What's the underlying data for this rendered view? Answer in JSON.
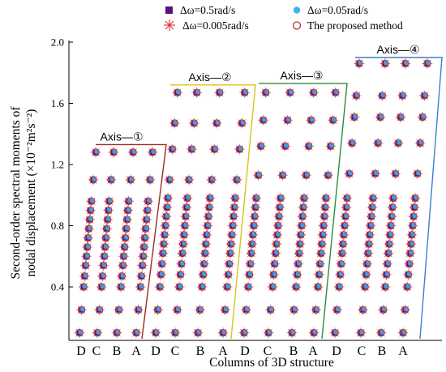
{
  "chart_data": {
    "type": "scatter",
    "ylabel_line1": "Second-order spectral moments of",
    "ylabel_line2": "nodal displacement (×10⁻²m²s⁻²)",
    "xlabel": "Columns of  3D structure",
    "ylim": [
      0.0,
      2.0
    ],
    "yticks": [
      "0.4",
      "0.8",
      "1.2",
      "1.6",
      "2.0"
    ],
    "ytick_values": [
      0.4,
      0.8,
      1.2,
      1.6,
      2.0
    ],
    "x_tick_labels": [
      "D",
      "C",
      "B",
      "A",
      "D",
      "C",
      "B",
      "A",
      "D",
      "C",
      "B",
      "A",
      "D",
      "C",
      "B",
      "A"
    ],
    "grid": false,
    "legend_position": "top",
    "legend": [
      {
        "name": "Δω=0.5rad/s",
        "marker": "square",
        "color": "#5b0f7d"
      },
      {
        "name": "Δω=0.05rad/s",
        "marker": "circle",
        "color": "#3cb6e8"
      },
      {
        "name": "Δω=0.005rad/s",
        "marker": "asterisk",
        "color": "#d6303a"
      },
      {
        "name": "The proposed method",
        "marker": "ring",
        "color": "#b8322f"
      }
    ],
    "zones": [
      {
        "label": "Axis—①",
        "color": "#9a2a22",
        "top": 1.33,
        "cols": [
          "D",
          "C",
          "B",
          "A"
        ],
        "column_x": [
          1,
          2,
          3,
          4
        ],
        "y_levels": [
          0.1,
          0.25,
          0.4,
          0.47,
          0.54,
          0.6,
          0.66,
          0.72,
          0.78,
          0.84,
          0.9,
          0.96,
          1.1,
          1.28
        ]
      },
      {
        "label": "Axis—②",
        "color": "#d8c21c",
        "top": 1.72,
        "cols": [
          "D",
          "C",
          "B",
          "A"
        ],
        "column_x": [
          5,
          6,
          7,
          8
        ],
        "y_levels": [
          0.1,
          0.25,
          0.4,
          0.48,
          0.55,
          0.62,
          0.68,
          0.74,
          0.8,
          0.86,
          0.92,
          0.98,
          1.1,
          1.3,
          1.47,
          1.67
        ]
      },
      {
        "label": "Axis—③",
        "color": "#2e8b3e",
        "top": 1.73,
        "cols": [
          "D",
          "C",
          "B",
          "A"
        ],
        "column_x": [
          9,
          10,
          11,
          12
        ],
        "y_levels": [
          0.1,
          0.25,
          0.4,
          0.48,
          0.55,
          0.62,
          0.68,
          0.74,
          0.8,
          0.86,
          0.92,
          0.98,
          1.13,
          1.32,
          1.49,
          1.67
        ]
      },
      {
        "label": "Axis—④",
        "color": "#3d7fd0",
        "top": 1.9,
        "cols": [
          "D",
          "C",
          "B",
          "A"
        ],
        "column_x": [
          13,
          14,
          15,
          16
        ],
        "y_levels": [
          0.1,
          0.25,
          0.4,
          0.48,
          0.55,
          0.62,
          0.68,
          0.74,
          0.8,
          0.86,
          0.92,
          0.98,
          1.14,
          1.34,
          1.51,
          1.65,
          1.86
        ]
      }
    ]
  }
}
